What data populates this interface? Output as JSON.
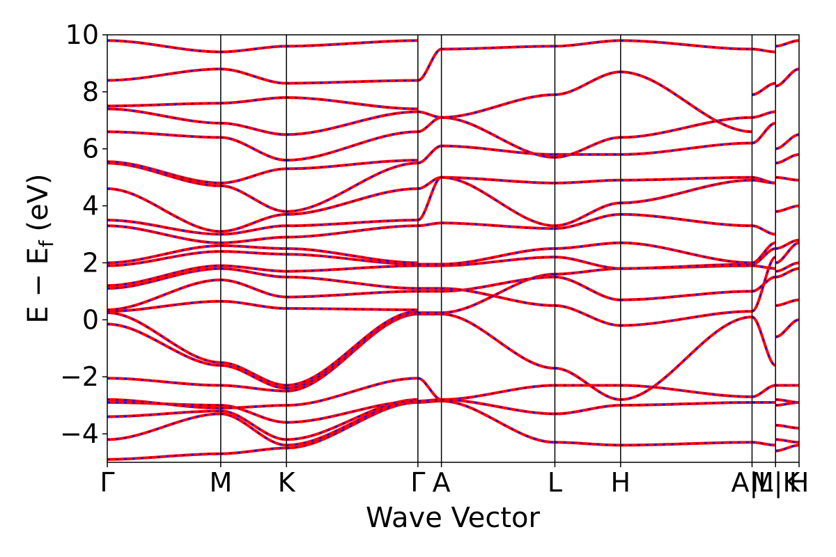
{
  "chart_data": {
    "type": "line",
    "title": "",
    "xlabel": "Wave Vector",
    "ylabel": {
      "main": "E − E",
      "sub": "f",
      "unit": " (eV)"
    },
    "ylim": [
      -5,
      10
    ],
    "xlim": [
      0,
      1
    ],
    "yticks": [
      -4,
      -2,
      0,
      2,
      4,
      6,
      8,
      10
    ],
    "ytick_labels": [
      "−4",
      "−2",
      "0",
      "2",
      "4",
      "6",
      "8",
      "10"
    ],
    "kpoints": [
      {
        "label": "Γ",
        "x": 0.0
      },
      {
        "label": "M",
        "x": 0.164
      },
      {
        "label": "K",
        "x": 0.259
      },
      {
        "label": "Γ",
        "x": 0.449
      },
      {
        "label": "A",
        "x": 0.483
      },
      {
        "label": "L",
        "x": 0.647
      },
      {
        "label": "H",
        "x": 0.742
      },
      {
        "label": "A|L",
        "x": 0.932
      },
      {
        "label": "M|K",
        "x": 0.966
      },
      {
        "label": "H",
        "x": 1.0
      }
    ],
    "grid": false,
    "colors": {
      "band_primary": "#ff0000",
      "band_secondary": "#0000ff",
      "kline": "#000000"
    },
    "segments": [
      {
        "x0": 0.0,
        "x1": 0.164,
        "bands": [
          [
            -4.9,
            -4.7
          ],
          [
            -4.2,
            -3.3
          ],
          [
            -3.4,
            -3.2
          ],
          [
            -2.9,
            -3.0
          ],
          [
            -2.8,
            -3.1
          ],
          [
            -2.05,
            -2.3
          ],
          [
            -0.15,
            -1.6
          ],
          [
            0.25,
            -1.5
          ],
          [
            0.3,
            0.65
          ],
          [
            0.35,
            1.4
          ],
          [
            1.1,
            1.8
          ],
          [
            1.2,
            1.9
          ],
          [
            1.9,
            2.4
          ],
          [
            2.0,
            2.6
          ],
          [
            3.3,
            2.7
          ],
          [
            3.5,
            3.0
          ],
          [
            4.6,
            3.1
          ],
          [
            5.5,
            4.7
          ],
          [
            5.55,
            4.8
          ],
          [
            6.6,
            6.4
          ],
          [
            7.4,
            6.9
          ],
          [
            7.5,
            7.6
          ],
          [
            8.4,
            8.8
          ],
          [
            9.8,
            9.4
          ]
        ]
      },
      {
        "x0": 0.164,
        "x1": 0.259,
        "bands": [
          [
            -4.7,
            -4.5
          ],
          [
            -3.3,
            -4.4
          ],
          [
            -3.2,
            -4.2
          ],
          [
            -3.0,
            -3.6
          ],
          [
            -3.1,
            -3.0
          ],
          [
            -2.3,
            -2.5
          ],
          [
            -1.6,
            -2.4
          ],
          [
            -1.5,
            -2.3
          ],
          [
            0.65,
            0.4
          ],
          [
            1.4,
            0.8
          ],
          [
            1.8,
            1.5
          ],
          [
            1.9,
            1.7
          ],
          [
            2.4,
            2.3
          ],
          [
            2.6,
            2.5
          ],
          [
            2.7,
            2.9
          ],
          [
            3.0,
            3.3
          ],
          [
            3.1,
            3.7
          ],
          [
            4.7,
            3.8
          ],
          [
            4.8,
            5.3
          ],
          [
            6.4,
            5.6
          ],
          [
            6.9,
            6.5
          ],
          [
            7.6,
            7.8
          ],
          [
            8.8,
            8.3
          ],
          [
            9.4,
            9.6
          ]
        ]
      },
      {
        "x0": 0.259,
        "x1": 0.449,
        "bands": [
          [
            -4.5,
            -2.9
          ],
          [
            -4.4,
            -2.85
          ],
          [
            -4.2,
            -2.8
          ],
          [
            -3.6,
            -2.85
          ],
          [
            -3.0,
            -2.05
          ],
          [
            -2.5,
            0.2
          ],
          [
            -2.4,
            0.25
          ],
          [
            -2.3,
            0.3
          ],
          [
            0.4,
            0.35
          ],
          [
            0.8,
            1.0
          ],
          [
            1.5,
            1.1
          ],
          [
            1.7,
            1.9
          ],
          [
            2.3,
            1.95
          ],
          [
            2.5,
            2.0
          ],
          [
            2.9,
            3.3
          ],
          [
            3.3,
            3.5
          ],
          [
            3.7,
            4.6
          ],
          [
            3.8,
            5.5
          ],
          [
            5.3,
            5.6
          ],
          [
            5.6,
            6.6
          ],
          [
            6.5,
            7.3
          ],
          [
            7.8,
            7.4
          ],
          [
            8.3,
            8.4
          ],
          [
            9.6,
            9.8
          ]
        ]
      },
      {
        "x0": 0.449,
        "x1": 0.483,
        "bands": [
          [
            -2.9,
            -2.85
          ],
          [
            -2.85,
            -2.8
          ],
          [
            -2.05,
            -2.8
          ],
          [
            0.2,
            0.2
          ],
          [
            0.25,
            0.25
          ],
          [
            1.0,
            1.0
          ],
          [
            1.1,
            1.1
          ],
          [
            1.9,
            1.9
          ],
          [
            1.95,
            1.95
          ],
          [
            3.3,
            3.4
          ],
          [
            3.5,
            5.0
          ],
          [
            4.6,
            5.0
          ],
          [
            5.5,
            6.1
          ],
          [
            6.6,
            7.1
          ],
          [
            7.3,
            7.1
          ],
          [
            8.4,
            9.5
          ]
        ]
      },
      {
        "x0": 0.483,
        "x1": 0.647,
        "bands": [
          [
            -2.85,
            -4.3
          ],
          [
            -2.8,
            -2.3
          ],
          [
            -2.8,
            -3.3
          ],
          [
            0.2,
            -1.7
          ],
          [
            0.25,
            1.6
          ],
          [
            1.0,
            1.5
          ],
          [
            1.1,
            0.5
          ],
          [
            1.9,
            2.2
          ],
          [
            1.95,
            2.5
          ],
          [
            3.4,
            3.2
          ],
          [
            5.0,
            4.8
          ],
          [
            5.0,
            3.3
          ],
          [
            6.1,
            5.8
          ],
          [
            7.1,
            5.7
          ],
          [
            7.1,
            7.9
          ],
          [
            9.5,
            9.6
          ]
        ]
      },
      {
        "x0": 0.647,
        "x1": 0.742,
        "bands": [
          [
            -4.3,
            -4.4
          ],
          [
            -2.3,
            -2.3
          ],
          [
            -3.3,
            -3.0
          ],
          [
            -1.7,
            -2.8
          ],
          [
            1.6,
            1.8
          ],
          [
            1.5,
            0.7
          ],
          [
            0.5,
            -0.2
          ],
          [
            2.2,
            1.8
          ],
          [
            2.5,
            2.7
          ],
          [
            3.2,
            3.7
          ],
          [
            4.8,
            4.9
          ],
          [
            3.3,
            4.1
          ],
          [
            5.8,
            5.8
          ],
          [
            5.7,
            6.4
          ],
          [
            7.9,
            8.7
          ],
          [
            9.6,
            9.8
          ]
        ]
      },
      {
        "x0": 0.742,
        "x1": 0.932,
        "bands": [
          [
            -4.4,
            -4.3
          ],
          [
            -2.3,
            -2.7
          ],
          [
            -3.0,
            -2.9
          ],
          [
            -2.8,
            0.1
          ],
          [
            1.8,
            1.9
          ],
          [
            0.7,
            1.0
          ],
          [
            -0.2,
            0.3
          ],
          [
            1.8,
            1.95
          ],
          [
            2.7,
            2.0
          ],
          [
            3.7,
            3.3
          ],
          [
            4.9,
            5.0
          ],
          [
            4.1,
            4.9
          ],
          [
            5.8,
            6.2
          ],
          [
            6.4,
            7.1
          ],
          [
            8.7,
            6.6
          ],
          [
            9.8,
            9.5
          ]
        ]
      },
      {
        "x0": 0.932,
        "x1": 0.966,
        "bands": [
          [
            -4.3,
            -4.4
          ],
          [
            -2.7,
            -2.3
          ],
          [
            -2.9,
            -2.9
          ],
          [
            0.1,
            -1.6
          ],
          [
            1.9,
            1.8
          ],
          [
            1.0,
            1.5
          ],
          [
            0.3,
            2.2
          ],
          [
            1.95,
            2.5
          ],
          [
            2.0,
            2.7
          ],
          [
            3.3,
            3.0
          ],
          [
            5.0,
            4.8
          ],
          [
            4.9,
            4.8
          ],
          [
            6.2,
            6.9
          ],
          [
            7.1,
            7.3
          ],
          [
            7.9,
            8.3
          ],
          [
            9.5,
            9.4
          ]
        ]
      },
      {
        "x0": 0.966,
        "x1": 1.0,
        "bands": [
          [
            -4.6,
            -4.4
          ],
          [
            -4.2,
            -4.3
          ],
          [
            -3.7,
            -3.8
          ],
          [
            -3.0,
            -2.9
          ],
          [
            -2.8,
            -2.9
          ],
          [
            -2.3,
            -2.3
          ],
          [
            -0.6,
            0.0
          ],
          [
            0.5,
            0.7
          ],
          [
            1.5,
            1.8
          ],
          [
            1.7,
            2.0
          ],
          [
            2.0,
            2.7
          ],
          [
            2.5,
            2.8
          ],
          [
            3.8,
            4.0
          ],
          [
            5.0,
            4.9
          ],
          [
            5.5,
            5.8
          ],
          [
            6.0,
            6.5
          ],
          [
            8.2,
            8.8
          ],
          [
            9.6,
            9.8
          ]
        ]
      }
    ]
  }
}
